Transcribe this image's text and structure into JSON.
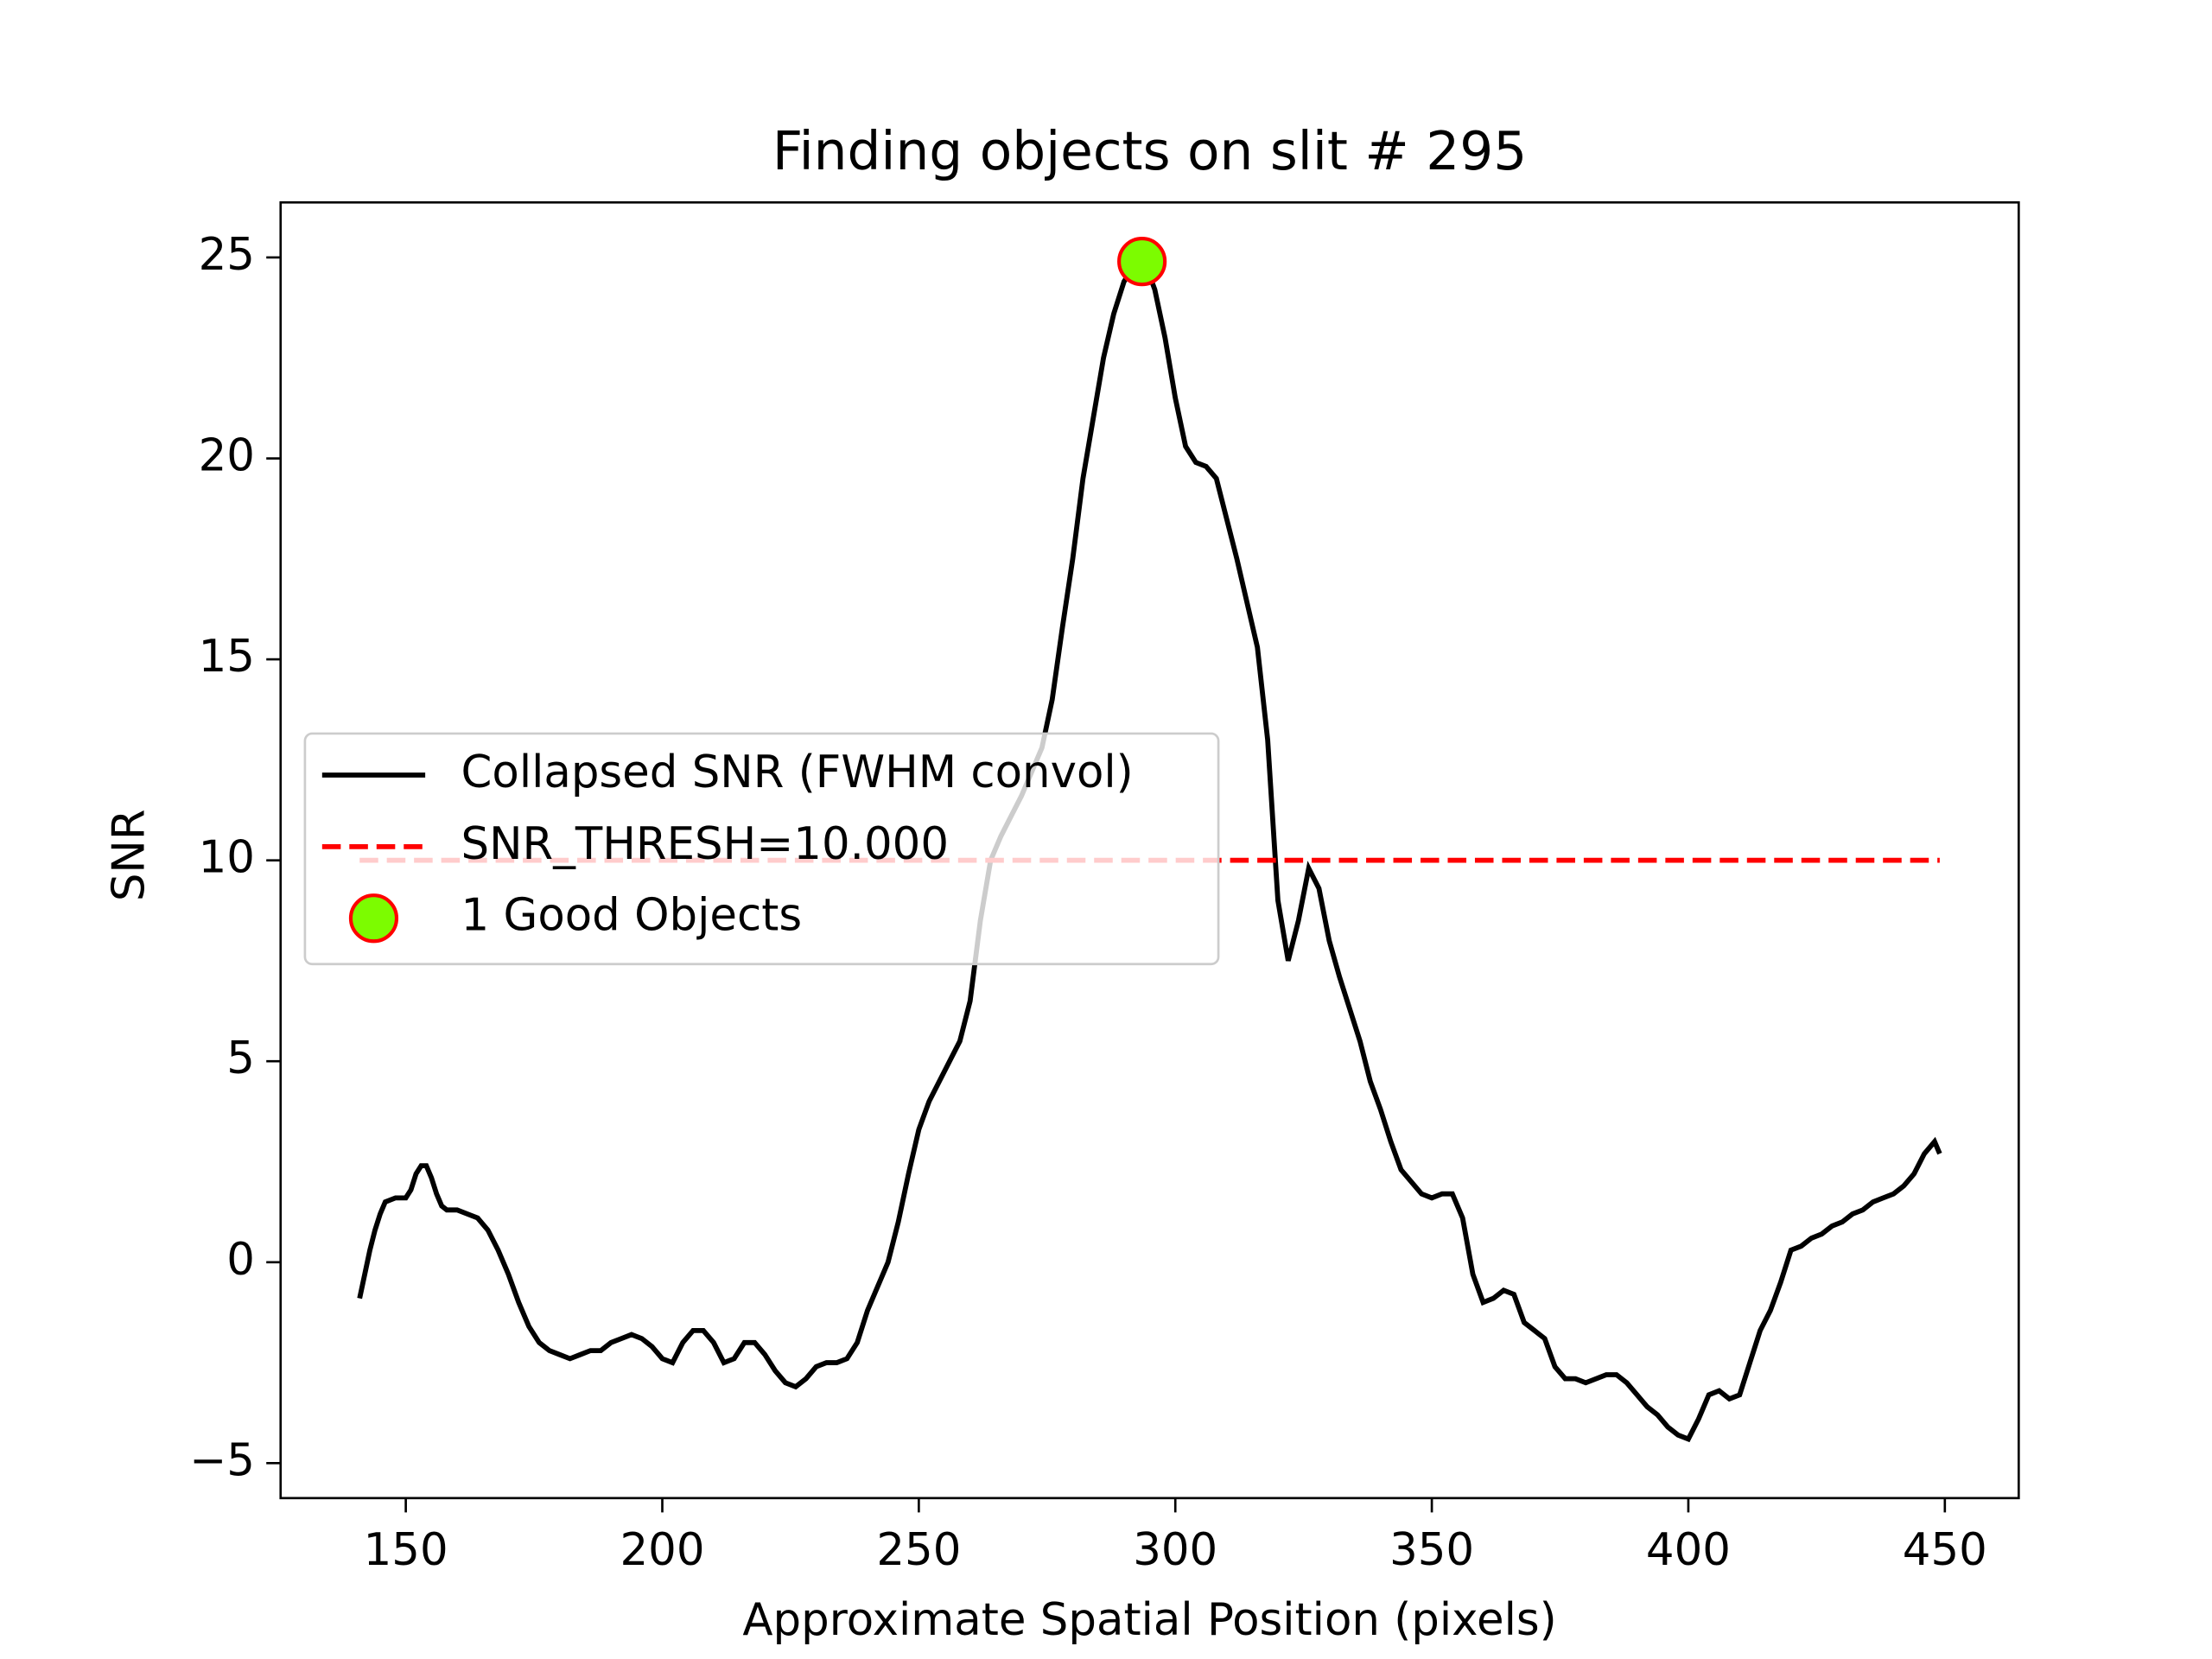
{
  "chart_data": {
    "type": "line",
    "title": "Finding objects on slit # 295",
    "xlabel": "Approximate Spatial Position (pixels)",
    "ylabel": "SNR",
    "xlim": [
      125.6,
      464.4
    ],
    "ylim": [
      -5.87,
      26.37
    ],
    "xticks": [
      150,
      200,
      250,
      300,
      350,
      400,
      450
    ],
    "yticks": [
      {
        "value": -5,
        "label": "−5"
      },
      0,
      5,
      10,
      15,
      20,
      25
    ],
    "legend": "center left",
    "series": [
      {
        "name": "Collapsed SNR (FWHM convol)",
        "color": "#000000",
        "style": "solid",
        "x": [
          141,
          142,
          143,
          144,
          145,
          146,
          148,
          150,
          151,
          152,
          153,
          154,
          155,
          156,
          157,
          158,
          160,
          162,
          164,
          166,
          168,
          170,
          172,
          174,
          176,
          178,
          180,
          182,
          184,
          186,
          188,
          190,
          192,
          194,
          196,
          198,
          200,
          202,
          204,
          206,
          208,
          210,
          212,
          214,
          216,
          218,
          220,
          222,
          224,
          226,
          228,
          230,
          232,
          234,
          236,
          238,
          240,
          242,
          244,
          246,
          248,
          250,
          252,
          254,
          256,
          258,
          260,
          262,
          264,
          266,
          268,
          270,
          272,
          274,
          276,
          278,
          280,
          282,
          284,
          286,
          288,
          290,
          292,
          294,
          296,
          298,
          300,
          302,
          304,
          306,
          308,
          310,
          312,
          314,
          316,
          318,
          320,
          322,
          324,
          326,
          328,
          330,
          332,
          334,
          336,
          338,
          340,
          342,
          344,
          346,
          348,
          350,
          352,
          354,
          356,
          358,
          360,
          362,
          364,
          366,
          368,
          370,
          372,
          374,
          376,
          378,
          380,
          382,
          384,
          386,
          388,
          390,
          392,
          394,
          396,
          398,
          400,
          402,
          404,
          406,
          408,
          410,
          412,
          414,
          416,
          418,
          420,
          422,
          424,
          426,
          428,
          430,
          432,
          434,
          436,
          438,
          440,
          442,
          444,
          446,
          448,
          449
        ],
        "values": [
          -0.9,
          -0.3,
          0.3,
          0.8,
          1.2,
          1.5,
          1.6,
          1.6,
          1.8,
          2.2,
          2.4,
          2.4,
          2.1,
          1.7,
          1.4,
          1.3,
          1.3,
          1.2,
          1.1,
          0.8,
          0.3,
          -0.3,
          -1.0,
          -1.6,
          -2.0,
          -2.2,
          -2.3,
          -2.4,
          -2.3,
          -2.2,
          -2.2,
          -2.0,
          -1.9,
          -1.8,
          -1.9,
          -2.1,
          -2.4,
          -2.5,
          -2.0,
          -1.7,
          -1.7,
          -2.0,
          -2.5,
          -2.4,
          -2.0,
          -2.0,
          -2.3,
          -2.7,
          -3.0,
          -3.1,
          -2.9,
          -2.6,
          -2.5,
          -2.5,
          -2.4,
          -2.0,
          -1.2,
          -0.6,
          0.0,
          1.0,
          2.2,
          3.3,
          4.0,
          4.5,
          5.0,
          5.5,
          6.5,
          8.5,
          10.0,
          10.6,
          11.1,
          11.6,
          12.2,
          12.8,
          14.0,
          15.8,
          17.5,
          19.5,
          21.0,
          22.5,
          23.6,
          24.4,
          24.8,
          24.9,
          24.2,
          23.0,
          21.5,
          20.3,
          19.9,
          19.8,
          19.5,
          18.5,
          17.5,
          16.4,
          15.3,
          13.0,
          9.0,
          7.5,
          8.5,
          9.8,
          9.3,
          8.0,
          7.1,
          6.3,
          5.5,
          4.5,
          3.8,
          3.0,
          2.3,
          2.0,
          1.7,
          1.6,
          1.7,
          1.7,
          1.1,
          -0.3,
          -1.0,
          -0.9,
          -0.7,
          -0.8,
          -1.5,
          -1.7,
          -1.9,
          -2.6,
          -2.9,
          -2.9,
          -3.0,
          -2.9,
          -2.8,
          -2.8,
          -3.0,
          -3.3,
          -3.6,
          -3.8,
          -4.1,
          -4.3,
          -4.4,
          -3.9,
          -3.3,
          -3.2,
          -3.4,
          -3.3,
          -2.5,
          -1.7,
          -1.2,
          -0.5,
          0.3,
          0.4,
          0.6,
          0.7,
          0.9,
          1.0,
          1.2,
          1.3,
          1.5,
          1.6,
          1.7,
          1.9,
          2.2,
          2.7,
          3.0,
          2.7
        ]
      },
      {
        "name": "SNR_THRESH=10.000",
        "color": "#ff0000",
        "style": "dashed",
        "x": [
          141,
          449
        ],
        "values": [
          10,
          10
        ]
      },
      {
        "name": "1 Good Objects",
        "color": "#7cfc00",
        "edgecolor": "#ff0000",
        "style": "marker",
        "x": [
          293.5
        ],
        "values": [
          24.9
        ]
      }
    ]
  }
}
